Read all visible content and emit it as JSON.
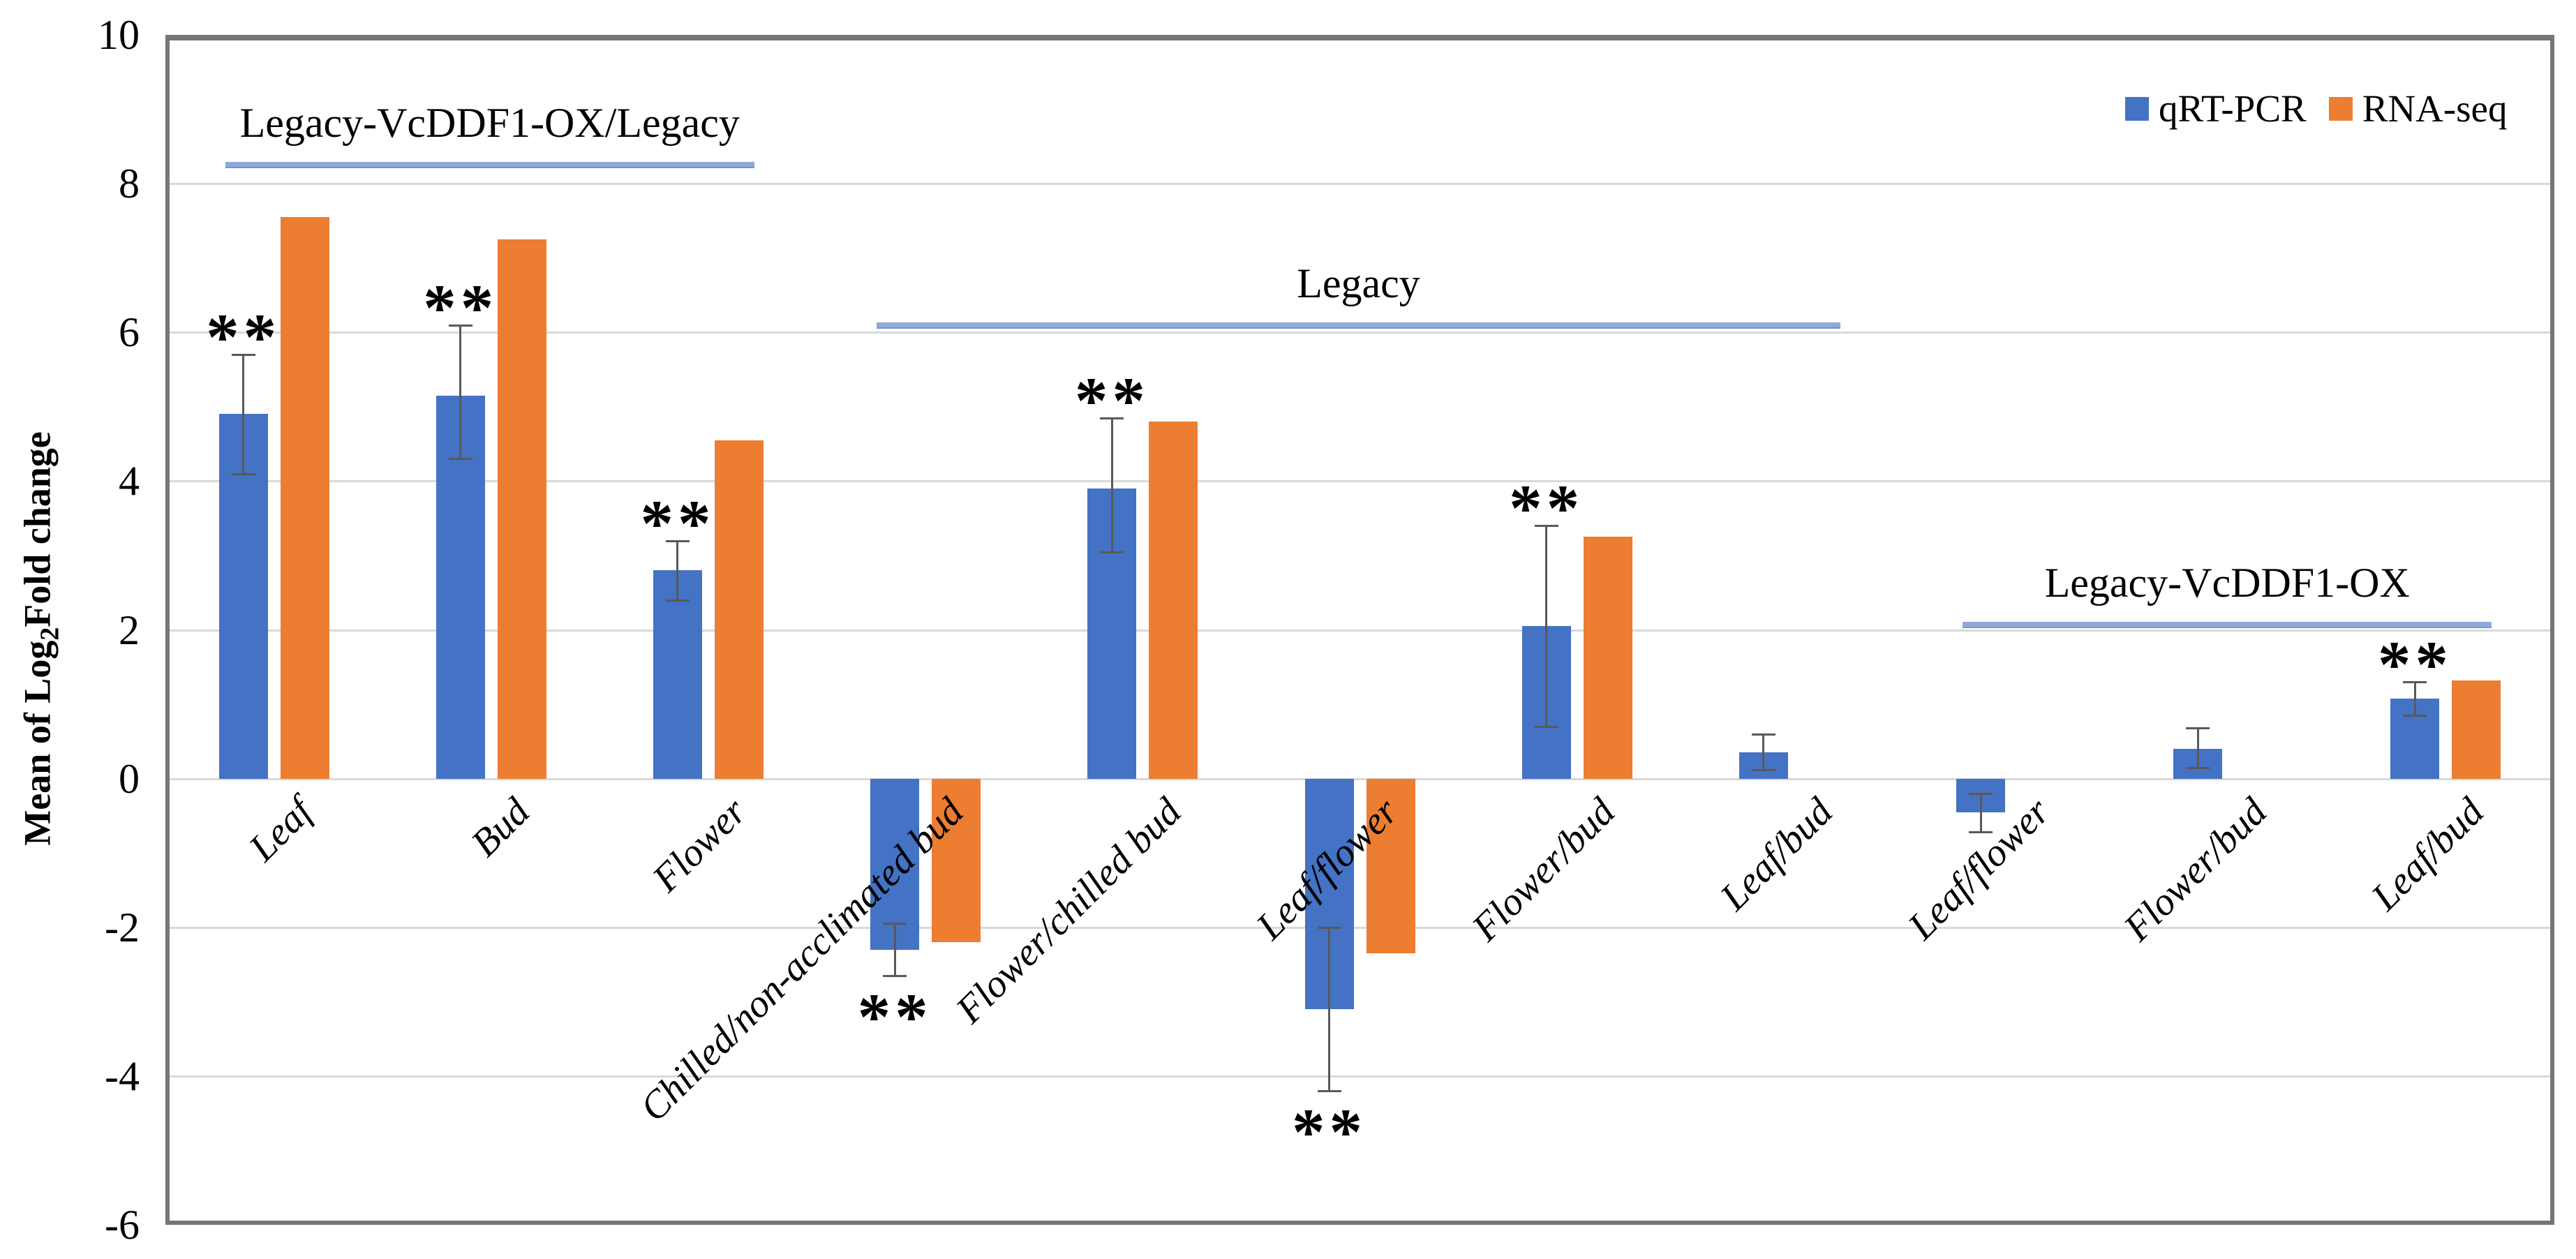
{
  "figure": {
    "background": "#ffffff",
    "plot_border_color": "#767676",
    "gridline_color": "#d9d9d9"
  },
  "legend": {
    "items": [
      {
        "label": "qRT-PCR",
        "color": "#4472c4"
      },
      {
        "label": "RNA-seq",
        "color": "#ed7d31"
      }
    ]
  },
  "y_axis": {
    "title_prefix": "Mean of Log",
    "title_sub": "2",
    "title_suffix": "Fold change",
    "tick_labels": [
      "10",
      "8",
      "6",
      "4",
      "2",
      "0",
      "-2",
      "-4",
      "-6"
    ],
    "tick_values": [
      10,
      8,
      6,
      4,
      2,
      0,
      -2,
      -4,
      -6
    ]
  },
  "colors": {
    "qrt_pcr": "#4472c4",
    "rna_seq": "#ed7d31",
    "error_bar": "#595959",
    "annotation_line": "#8ea9db"
  },
  "chart_data": {
    "type": "bar",
    "title": "",
    "xlabel": "",
    "ylabel": "Mean of Log2Fold change",
    "ylim": [
      -6,
      10
    ],
    "grid": true,
    "legend_position": "top-right",
    "categories": [
      "Leaf",
      "Bud",
      "Flower",
      "Chilled/non-acclimated bud",
      "Flower/chilled bud",
      "Leaf/flower",
      "Flower/bud",
      "Leaf/bud",
      "Leaf/flower",
      "Flower/bud",
      "Leaf/bud"
    ],
    "series": [
      {
        "name": "qRT-PCR",
        "color": "#4472c4",
        "values": [
          4.9,
          5.15,
          2.8,
          -2.3,
          3.9,
          -3.1,
          2.05,
          0.35,
          -0.45,
          0.4,
          1.08
        ]
      },
      {
        "name": "RNA-seq",
        "color": "#ed7d31",
        "values": [
          7.55,
          7.25,
          4.55,
          -2.2,
          4.8,
          -2.35,
          3.25,
          null,
          null,
          null,
          1.32
        ]
      }
    ],
    "error_bars": {
      "series": "qRT-PCR",
      "low": [
        4.1,
        4.3,
        2.4,
        -2.65,
        3.05,
        -4.2,
        0.7,
        0.12,
        -0.72,
        0.15,
        0.85
      ],
      "high": [
        5.7,
        6.1,
        3.2,
        -1.95,
        4.85,
        -2.0,
        3.4,
        0.6,
        -0.2,
        0.68,
        1.3
      ]
    },
    "significance": [
      {
        "index": 0,
        "marker": "**",
        "position": "above"
      },
      {
        "index": 1,
        "marker": "**",
        "position": "above"
      },
      {
        "index": 2,
        "marker": "**",
        "position": "above"
      },
      {
        "index": 3,
        "marker": "**",
        "position": "below"
      },
      {
        "index": 4,
        "marker": "**",
        "position": "above"
      },
      {
        "index": 5,
        "marker": "**",
        "position": "below"
      },
      {
        "index": 6,
        "marker": "**",
        "position": "above"
      },
      {
        "index": 10,
        "marker": "**",
        "position": "above"
      }
    ],
    "group_annotations": [
      {
        "label": "Legacy-VcDDF1-OX/Legacy",
        "start_index": 0,
        "end_index": 2,
        "line_y": 8.25
      },
      {
        "label": "Legacy",
        "start_index": 3,
        "end_index": 7,
        "line_y": 6.1
      },
      {
        "label": "Legacy-VcDDF1-OX",
        "start_index": 8,
        "end_index": 10,
        "line_y": 2.07
      }
    ]
  }
}
